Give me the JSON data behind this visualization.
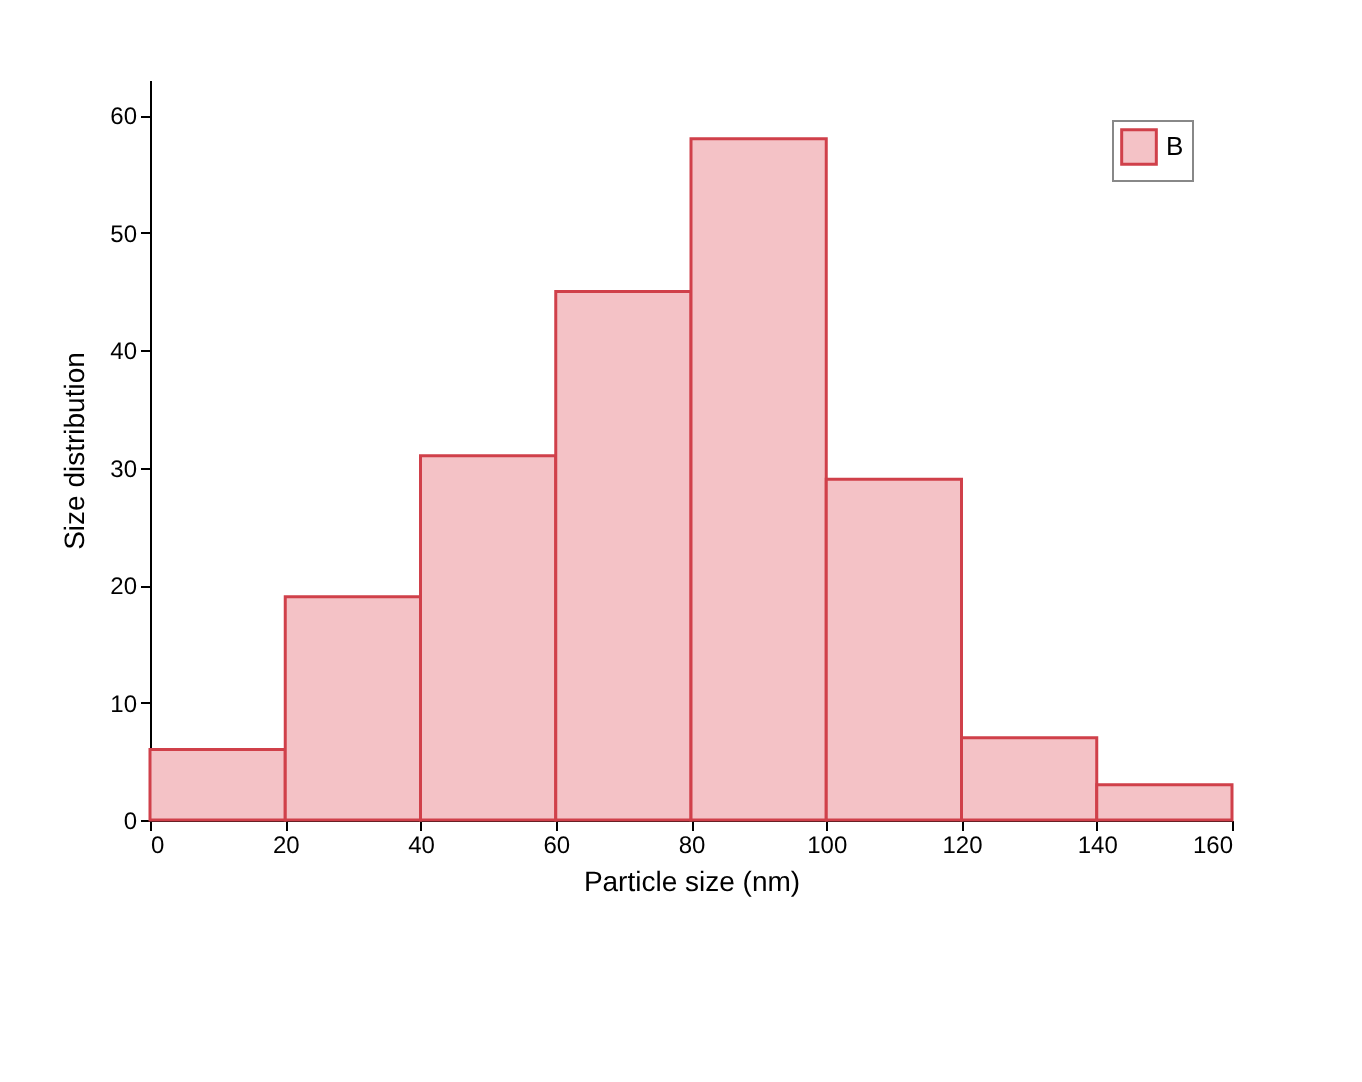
{
  "chart_data": {
    "type": "histogram",
    "xlabel": "Particle size (nm)",
    "ylabel": "Size distribution",
    "bins": [
      0,
      20,
      40,
      60,
      80,
      100,
      120,
      140,
      160
    ],
    "series": [
      {
        "name": "B",
        "color": "#f4c2c6",
        "values": [
          6,
          19,
          31,
          45,
          58,
          29,
          7,
          3
        ]
      }
    ],
    "xlim": [
      0,
      160
    ],
    "xticks": [
      0,
      20,
      40,
      60,
      80,
      100,
      120,
      140,
      160
    ],
    "ylim": [
      0,
      63
    ],
    "yticks": [
      0,
      10,
      20,
      30,
      40,
      50,
      60
    ],
    "grid": false,
    "legend": "top right"
  }
}
